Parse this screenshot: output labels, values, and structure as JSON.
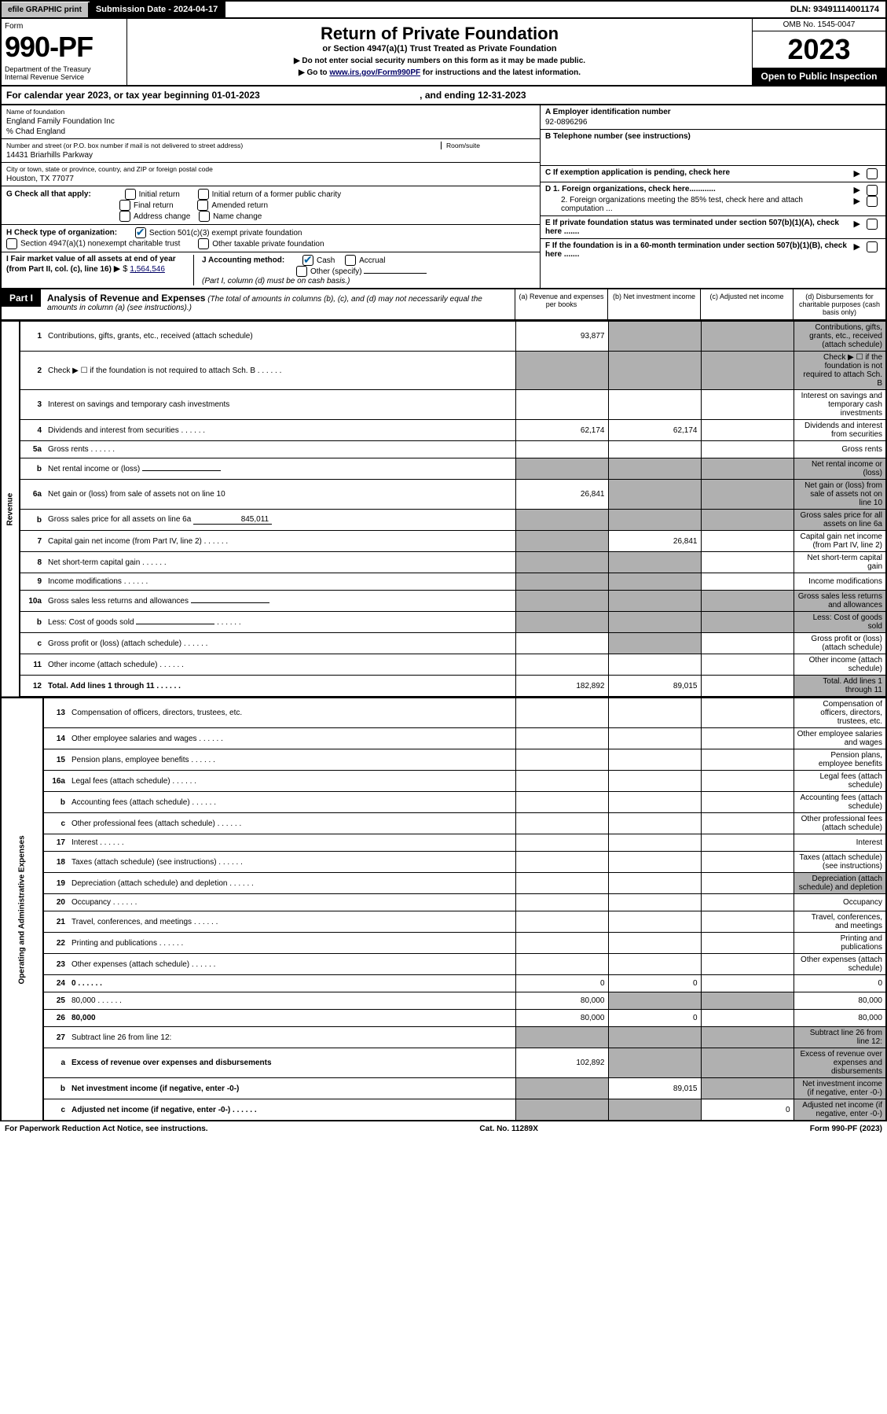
{
  "top": {
    "efile": "efile GRAPHIC print",
    "sub_label": "Submission Date - 2024-04-17",
    "dln": "DLN: 93491114001174"
  },
  "header": {
    "form_word": "Form",
    "form_no": "990-PF",
    "dept": "Department of the Treasury\nInternal Revenue Service",
    "title": "Return of Private Foundation",
    "subtitle": "or Section 4947(a)(1) Trust Treated as Private Foundation",
    "note1": "▶ Do not enter social security numbers on this form as it may be made public.",
    "note2_pre": "▶ Go to ",
    "note2_link": "www.irs.gov/Form990PF",
    "note2_post": " for instructions and the latest information.",
    "omb": "OMB No. 1545-0047",
    "year": "2023",
    "insp": "Open to Public Inspection"
  },
  "cal": {
    "text": "For calendar year 2023, or tax year beginning 01-01-2023",
    "end": ", and ending 12-31-2023"
  },
  "id": {
    "name_label": "Name of foundation",
    "name": "England Family Foundation Inc",
    "care": "% Chad England",
    "addr_label": "Number and street (or P.O. box number if mail is not delivered to street address)",
    "addr": "14431 Briarhills Parkway",
    "room_label": "Room/suite",
    "city_label": "City or town, state or province, country, and ZIP or foreign postal code",
    "city": "Houston, TX  77077",
    "ein_label": "A Employer identification number",
    "ein": "92-0896296",
    "tel_label": "B Telephone number (see instructions)",
    "c_label": "C If exemption application is pending, check here",
    "d1": "D 1. Foreign organizations, check here............",
    "d2": "2. Foreign organizations meeting the 85% test, check here and attach computation ...",
    "e_label": "E  If private foundation status was terminated under section 507(b)(1)(A), check here .......",
    "f_label": "F  If the foundation is in a 60-month termination under section 507(b)(1)(B), check here .......",
    "g_label": "G Check all that apply:",
    "g_opts": [
      "Initial return",
      "Initial return of a former public charity",
      "Final return",
      "Amended return",
      "Address change",
      "Name change"
    ],
    "h_label": "H Check type of organization:",
    "h1": "Section 501(c)(3) exempt private foundation",
    "h2": "Section 4947(a)(1) nonexempt charitable trust",
    "h3": "Other taxable private foundation",
    "i_label": "I Fair market value of all assets at end of year (from Part II, col. (c), line 16)",
    "i_val": "1,564,546",
    "j_label": "J Accounting method:",
    "j_cash": "Cash",
    "j_acc": "Accrual",
    "j_other": "Other (specify)",
    "j_note": "(Part I, column (d) must be on cash basis.)"
  },
  "part1": {
    "label": "Part I",
    "title": "Analysis of Revenue and Expenses",
    "note": "(The total of amounts in columns (b), (c), and (d) may not necessarily equal the amounts in column (a) (see instructions).)",
    "col_a": "(a)  Revenue and expenses per books",
    "col_b": "(b)  Net investment income",
    "col_c": "(c)  Adjusted net income",
    "col_d": "(d)  Disbursements for charitable purposes (cash basis only)"
  },
  "rows": [
    {
      "n": "1",
      "d": "Contributions, gifts, grants, etc., received (attach schedule)",
      "a": "93,877",
      "grey": [
        "b",
        "c",
        "d"
      ]
    },
    {
      "n": "2",
      "d": "Check ▶ ☐ if the foundation is not required to attach Sch. B",
      "grey": [
        "a",
        "b",
        "c",
        "d"
      ],
      "dots": true
    },
    {
      "n": "3",
      "d": "Interest on savings and temporary cash investments"
    },
    {
      "n": "4",
      "d": "Dividends and interest from securities",
      "a": "62,174",
      "b": "62,174",
      "dots": true
    },
    {
      "n": "5a",
      "d": "Gross rents",
      "dots": true
    },
    {
      "n": "b",
      "d": "Net rental income or (loss)",
      "inline": true,
      "grey": [
        "a",
        "b",
        "c",
        "d"
      ]
    },
    {
      "n": "6a",
      "d": "Net gain or (loss) from sale of assets not on line 10",
      "a": "26,841",
      "grey": [
        "b",
        "c",
        "d"
      ]
    },
    {
      "n": "b",
      "d": "Gross sales price for all assets on line 6a",
      "inline": true,
      "inline_val": "845,011",
      "grey": [
        "a",
        "b",
        "c",
        "d"
      ]
    },
    {
      "n": "7",
      "d": "Capital gain net income (from Part IV, line 2)",
      "b": "26,841",
      "grey": [
        "a"
      ],
      "dots": true
    },
    {
      "n": "8",
      "d": "Net short-term capital gain",
      "grey": [
        "a",
        "b"
      ],
      "dots": true
    },
    {
      "n": "9",
      "d": "Income modifications",
      "grey": [
        "a",
        "b"
      ],
      "dots": true
    },
    {
      "n": "10a",
      "d": "Gross sales less returns and allowances",
      "inline": true,
      "grey": [
        "a",
        "b",
        "c",
        "d"
      ]
    },
    {
      "n": "b",
      "d": "Less: Cost of goods sold",
      "inline": true,
      "grey": [
        "a",
        "b",
        "c",
        "d"
      ],
      "dots": true
    },
    {
      "n": "c",
      "d": "Gross profit or (loss) (attach schedule)",
      "grey": [
        "b"
      ],
      "dots": true
    },
    {
      "n": "11",
      "d": "Other income (attach schedule)",
      "dots": true
    },
    {
      "n": "12",
      "d": "Total. Add lines 1 through 11",
      "a": "182,892",
      "b": "89,015",
      "bold": true,
      "grey": [
        "d"
      ],
      "dots": true
    }
  ],
  "exp_rows": [
    {
      "n": "13",
      "d": "Compensation of officers, directors, trustees, etc."
    },
    {
      "n": "14",
      "d": "Other employee salaries and wages",
      "dots": true
    },
    {
      "n": "15",
      "d": "Pension plans, employee benefits",
      "dots": true
    },
    {
      "n": "16a",
      "d": "Legal fees (attach schedule)",
      "dots": true
    },
    {
      "n": "b",
      "d": "Accounting fees (attach schedule)",
      "dots": true
    },
    {
      "n": "c",
      "d": "Other professional fees (attach schedule)",
      "dots": true
    },
    {
      "n": "17",
      "d": "Interest",
      "dots": true
    },
    {
      "n": "18",
      "d": "Taxes (attach schedule) (see instructions)",
      "dots": true
    },
    {
      "n": "19",
      "d": "Depreciation (attach schedule) and depletion",
      "grey": [
        "d"
      ],
      "dots": true
    },
    {
      "n": "20",
      "d": "Occupancy",
      "dots": true
    },
    {
      "n": "21",
      "d": "Travel, conferences, and meetings",
      "dots": true
    },
    {
      "n": "22",
      "d": "Printing and publications",
      "dots": true
    },
    {
      "n": "23",
      "d": "Other expenses (attach schedule)",
      "dots": true
    },
    {
      "n": "24",
      "d": "0",
      "a": "0",
      "b": "0",
      "bold": true,
      "dots": true
    },
    {
      "n": "25",
      "d": "80,000",
      "a": "80,000",
      "grey": [
        "b",
        "c"
      ],
      "dots": true
    },
    {
      "n": "26",
      "d": "80,000",
      "a": "80,000",
      "b": "0",
      "bold": true
    },
    {
      "n": "27",
      "d": "Subtract line 26 from line 12:",
      "grey": [
        "a",
        "b",
        "c",
        "d"
      ]
    },
    {
      "n": "a",
      "d": "Excess of revenue over expenses and disbursements",
      "a": "102,892",
      "grey": [
        "b",
        "c",
        "d"
      ],
      "bold": true
    },
    {
      "n": "b",
      "d": "Net investment income (if negative, enter -0-)",
      "b": "89,015",
      "grey": [
        "a",
        "c",
        "d"
      ],
      "bold": true
    },
    {
      "n": "c",
      "d": "Adjusted net income (if negative, enter -0-)",
      "c": "0",
      "grey": [
        "a",
        "b",
        "d"
      ],
      "bold": true,
      "dots": true
    }
  ],
  "side_rev": "Revenue",
  "side_exp": "Operating and Administrative Expenses",
  "footer": {
    "left": "For Paperwork Reduction Act Notice, see instructions.",
    "mid": "Cat. No. 11289X",
    "right": "Form 990-PF (2023)"
  }
}
